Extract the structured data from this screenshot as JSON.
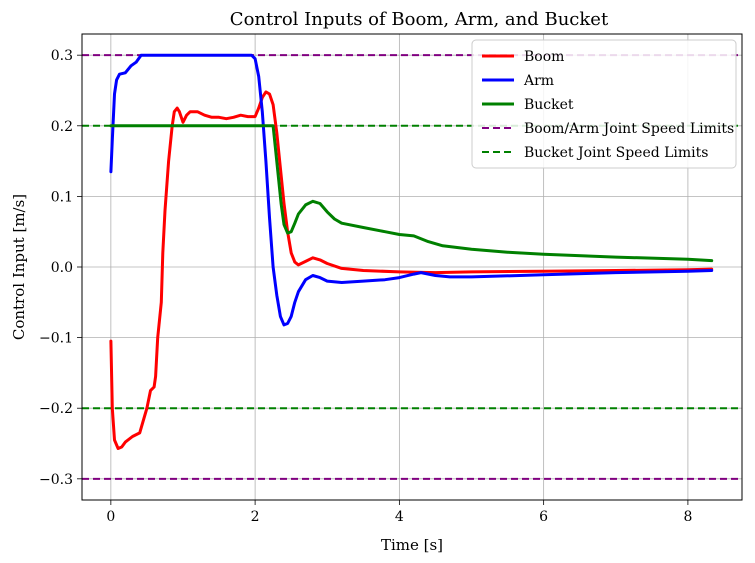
{
  "chart_data": {
    "type": "line",
    "title": "Control Inputs of Boom, Arm, and Bucket",
    "xlabel": "Time [s]",
    "ylabel": "Control Input [m/s]",
    "xlim": [
      -0.4,
      8.75
    ],
    "ylim": [
      -0.33,
      0.33
    ],
    "x_ticks": [
      0,
      2,
      4,
      6,
      8
    ],
    "y_ticks": [
      -0.3,
      -0.2,
      -0.1,
      0.0,
      0.1,
      0.2,
      0.3
    ],
    "x_tick_labels": [
      "0",
      "2",
      "4",
      "6",
      "8"
    ],
    "y_tick_labels": [
      "−0.3",
      "−0.2",
      "−0.1",
      "0.0",
      "0.1",
      "0.2",
      "0.3"
    ],
    "grid": true,
    "legend_position": "top-right",
    "series": [
      {
        "name": "Boom",
        "color": "#ff0000",
        "style": "solid",
        "x": [
          0.0,
          0.02,
          0.05,
          0.1,
          0.15,
          0.2,
          0.3,
          0.4,
          0.5,
          0.55,
          0.6,
          0.62,
          0.65,
          0.7,
          0.72,
          0.75,
          0.8,
          0.85,
          0.88,
          0.92,
          0.95,
          1.0,
          1.05,
          1.1,
          1.2,
          1.3,
          1.4,
          1.5,
          1.6,
          1.7,
          1.8,
          1.9,
          2.0,
          2.05,
          2.1,
          2.15,
          2.2,
          2.25,
          2.3,
          2.35,
          2.4,
          2.45,
          2.5,
          2.55,
          2.6,
          2.7,
          2.8,
          2.9,
          3.0,
          3.2,
          3.5,
          4.0,
          4.5,
          5.0,
          6.0,
          7.0,
          8.0,
          8.33
        ],
        "y": [
          -0.105,
          -0.2,
          -0.245,
          -0.257,
          -0.255,
          -0.248,
          -0.24,
          -0.235,
          -0.2,
          -0.175,
          -0.17,
          -0.155,
          -0.1,
          -0.05,
          0.02,
          0.08,
          0.15,
          0.2,
          0.22,
          0.225,
          0.22,
          0.205,
          0.215,
          0.22,
          0.22,
          0.215,
          0.212,
          0.212,
          0.21,
          0.212,
          0.215,
          0.213,
          0.213,
          0.225,
          0.24,
          0.248,
          0.245,
          0.23,
          0.19,
          0.14,
          0.09,
          0.05,
          0.02,
          0.007,
          0.003,
          0.008,
          0.013,
          0.01,
          0.005,
          -0.002,
          -0.005,
          -0.007,
          -0.008,
          -0.007,
          -0.006,
          -0.005,
          -0.004,
          -0.003
        ]
      },
      {
        "name": "Arm",
        "color": "#0000ff",
        "style": "solid",
        "x": [
          0.0,
          0.02,
          0.05,
          0.08,
          0.12,
          0.2,
          0.28,
          0.35,
          0.42,
          0.45,
          0.5,
          1.0,
          1.5,
          1.95,
          2.0,
          2.05,
          2.1,
          2.15,
          2.2,
          2.25,
          2.3,
          2.35,
          2.4,
          2.45,
          2.5,
          2.55,
          2.6,
          2.7,
          2.8,
          2.9,
          3.0,
          3.2,
          3.5,
          3.8,
          4.0,
          4.2,
          4.3,
          4.5,
          4.7,
          5.0,
          6.0,
          7.0,
          8.0,
          8.33
        ],
        "y": [
          0.135,
          0.18,
          0.245,
          0.265,
          0.273,
          0.275,
          0.285,
          0.29,
          0.3,
          0.3,
          0.3,
          0.3,
          0.3,
          0.3,
          0.295,
          0.27,
          0.22,
          0.15,
          0.07,
          0.0,
          -0.04,
          -0.07,
          -0.082,
          -0.08,
          -0.07,
          -0.05,
          -0.035,
          -0.018,
          -0.012,
          -0.015,
          -0.02,
          -0.022,
          -0.02,
          -0.018,
          -0.015,
          -0.01,
          -0.008,
          -0.012,
          -0.014,
          -0.014,
          -0.011,
          -0.008,
          -0.006,
          -0.005
        ]
      },
      {
        "name": "Bucket",
        "color": "#008000",
        "style": "solid",
        "x": [
          0.0,
          0.5,
          1.0,
          1.5,
          2.0,
          2.2,
          2.25,
          2.28,
          2.32,
          2.36,
          2.4,
          2.45,
          2.5,
          2.55,
          2.6,
          2.7,
          2.8,
          2.9,
          3.0,
          3.1,
          3.2,
          3.5,
          3.8,
          4.0,
          4.2,
          4.4,
          4.6,
          5.0,
          5.5,
          6.0,
          7.0,
          8.0,
          8.33
        ],
        "y": [
          0.2,
          0.2,
          0.2,
          0.2,
          0.2,
          0.2,
          0.2,
          0.17,
          0.13,
          0.09,
          0.06,
          0.048,
          0.05,
          0.062,
          0.075,
          0.088,
          0.093,
          0.09,
          0.078,
          0.068,
          0.062,
          0.056,
          0.05,
          0.046,
          0.044,
          0.036,
          0.03,
          0.025,
          0.021,
          0.018,
          0.014,
          0.011,
          0.009
        ]
      },
      {
        "name": "Boom/Arm Joint Speed Limits",
        "color": "#800080",
        "style": "dashed",
        "hlines": [
          0.3,
          -0.3
        ]
      },
      {
        "name": "Bucket Joint Speed Limits",
        "color": "#008000",
        "style": "dashed",
        "hlines": [
          0.2,
          -0.2
        ]
      }
    ]
  }
}
